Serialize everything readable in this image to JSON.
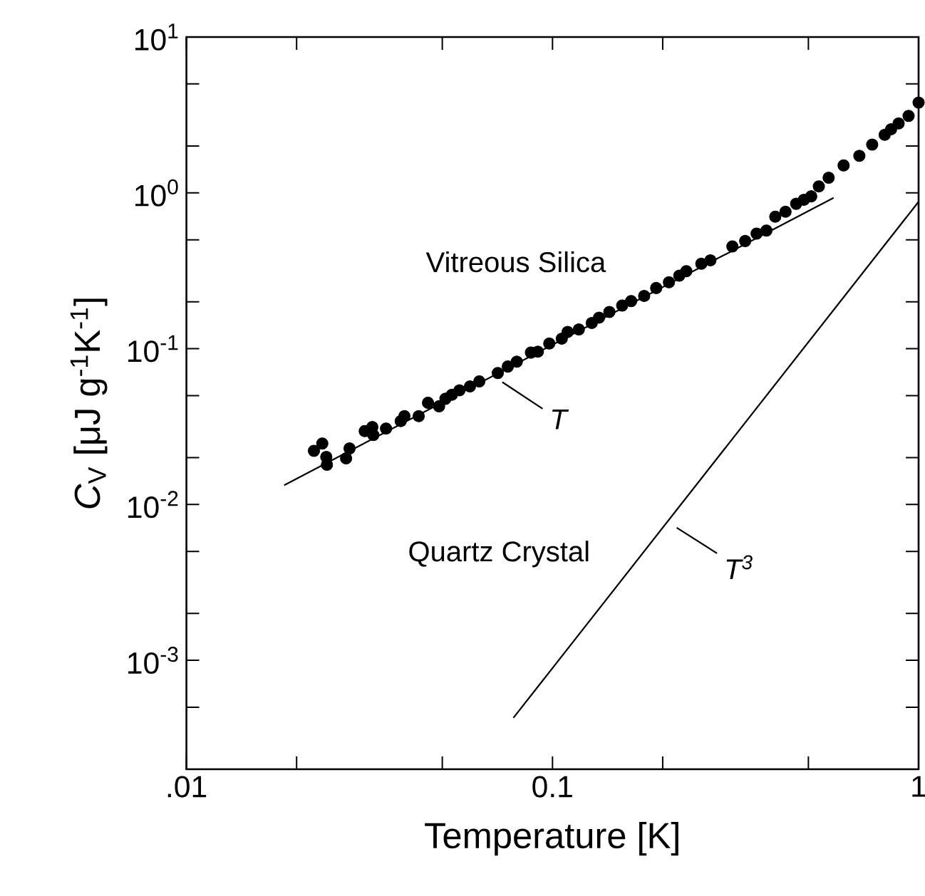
{
  "chart_data": {
    "type": "scatter",
    "xlabel": "Temperature [K]",
    "ylabel": "*C*$_{V}$ [μJ g$^{-1}$K$^{-1}$]",
    "log": "xy",
    "xlim": [
      0.01,
      1
    ],
    "ylim": [
      0.0002,
      10
    ],
    "xticks": [
      {
        "value": 0.01,
        "label": ".01"
      },
      {
        "value": 0.02,
        "label": null
      },
      {
        "value": 0.05,
        "label": null
      },
      0.1,
      {
        "value": 0.2,
        "label": null
      },
      {
        "value": 0.5,
        "label": null
      },
      1
    ],
    "yticks": [
      {
        "value": 0.0005,
        "label": null
      },
      {
        "value": 0.001,
        "label": "10$^{-3}$"
      },
      {
        "value": 0.002,
        "label": null
      },
      {
        "value": 0.005,
        "label": null
      },
      {
        "value": 0.01,
        "label": "10$^{-2}$"
      },
      {
        "value": 0.02,
        "label": null
      },
      {
        "value": 0.05,
        "label": null
      },
      {
        "value": 0.1,
        "label": "10$^{-1}$"
      },
      {
        "value": 0.2,
        "label": null
      },
      {
        "value": 0.5,
        "label": null
      },
      {
        "value": 1,
        "label": "10$^{0}$"
      },
      {
        "value": 2,
        "label": null
      },
      {
        "value": 5,
        "label": null
      },
      {
        "value": 10,
        "label": "10$^{1}$"
      }
    ],
    "series": [
      {
        "color": "#000000",
        "marker": "circle",
        "x": [
          0.0223,
          0.0235,
          0.0241,
          0.0242,
          0.0273,
          0.0279,
          0.0307,
          0.0322,
          0.0324,
          0.0351,
          0.0385,
          0.0394,
          0.0431,
          0.0457,
          0.049,
          0.051,
          0.0531,
          0.0557,
          0.0595,
          0.0631,
          0.0709,
          0.0755,
          0.0799,
          0.0873,
          0.0912,
          0.098,
          0.106,
          0.11,
          0.118,
          0.128,
          0.134,
          0.143,
          0.155,
          0.164,
          0.178,
          0.192,
          0.208,
          0.222,
          0.232,
          0.255,
          0.27,
          0.31,
          0.336,
          0.361,
          0.384,
          0.406,
          0.433,
          0.463,
          0.486,
          0.509,
          0.534,
          0.568,
          0.624,
          0.689,
          0.747,
          0.808,
          0.841,
          0.882,
          0.939,
          1.0
        ],
        "values": [
          0.0221,
          0.0246,
          0.0202,
          0.018,
          0.0198,
          0.0229,
          0.0296,
          0.0314,
          0.0279,
          0.0307,
          0.0343,
          0.0369,
          0.0369,
          0.045,
          0.0427,
          0.0477,
          0.0506,
          0.054,
          0.0573,
          0.0616,
          0.0698,
          0.0768,
          0.0826,
          0.0943,
          0.0957,
          0.108,
          0.116,
          0.128,
          0.133,
          0.146,
          0.158,
          0.172,
          0.189,
          0.202,
          0.218,
          0.245,
          0.267,
          0.294,
          0.314,
          0.351,
          0.369,
          0.453,
          0.491,
          0.548,
          0.573,
          0.703,
          0.757,
          0.851,
          0.902,
          0.95,
          1.1,
          1.25,
          1.5,
          1.73,
          2.04,
          2.36,
          2.56,
          2.79,
          3.12,
          3.8
        ]
      },
      {
        "type": "line",
        "name": "T",
        "marker": "none",
        "color": "#000000",
        "x": [
          0.0185,
          0.586
        ],
        "values": [
          0.0133,
          0.93
        ]
      },
      {
        "type": "line",
        "name": "T$^{3}$",
        "marker": "none",
        "color": "#000000",
        "x": [
          0.0782,
          1.0
        ],
        "values": [
          0.000427,
          0.877
        ]
      }
    ],
    "annotations": [
      "Vitreous Silica",
      "Quartz Crystal"
    ]
  }
}
